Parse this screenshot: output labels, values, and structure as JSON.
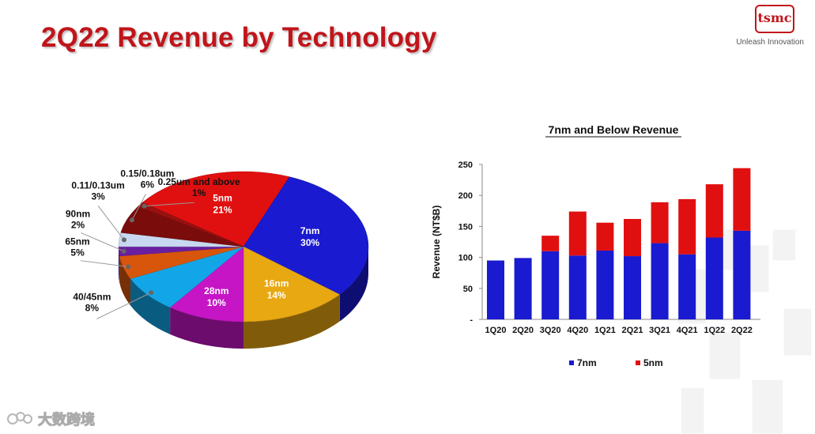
{
  "slide": {
    "title": "2Q22 Revenue by Technology",
    "brand": {
      "logo_text": "tsmc",
      "tagline": "Unleash Innovation",
      "accent": "#c0151b"
    },
    "watermark": "大数跨境"
  },
  "chart_data": [
    {
      "type": "pie",
      "title": "",
      "slices": [
        {
          "label": "5nm",
          "value": 21,
          "pct_label": "21%",
          "color": "#e01010"
        },
        {
          "label": "7nm",
          "value": 30,
          "pct_label": "30%",
          "color": "#1a1ad0"
        },
        {
          "label": "16nm",
          "value": 14,
          "pct_label": "14%",
          "color": "#e8a812"
        },
        {
          "label": "28nm",
          "value": 10,
          "pct_label": "10%",
          "color": "#c515c5"
        },
        {
          "label": "40/45nm",
          "value": 8,
          "pct_label": "8%",
          "color": "#12a6e8"
        },
        {
          "label": "65nm",
          "value": 5,
          "pct_label": "5%",
          "color": "#d8560c"
        },
        {
          "label": "90nm",
          "value": 2,
          "pct_label": "2%",
          "color": "#6a1fa0"
        },
        {
          "label": "0.11/0.13um",
          "value": 3,
          "pct_label": "3%",
          "color": "#c8d8f0"
        },
        {
          "label": "0.15/0.18um",
          "value": 6,
          "pct_label": "6%",
          "color": "#7a0c0c"
        },
        {
          "label": "0.25um and above",
          "value": 1,
          "pct_label": "1%",
          "color": "#9a1010"
        }
      ]
    },
    {
      "type": "bar",
      "stacked": true,
      "title": "7nm and Below Revenue",
      "xlabel": "",
      "ylabel": "Revenue (NT$B)",
      "ylim": [
        0,
        250
      ],
      "yticks": [
        0,
        50,
        100,
        150,
        200,
        250
      ],
      "ytick_labels": [
        "-",
        "50",
        "100",
        "150",
        "200",
        "250"
      ],
      "categories": [
        "1Q20",
        "2Q20",
        "3Q20",
        "4Q20",
        "1Q21",
        "2Q21",
        "3Q21",
        "4Q21",
        "1Q22",
        "2Q22"
      ],
      "series": [
        {
          "name": "7nm",
          "color": "#1a1ad0",
          "values": [
            95,
            99,
            110,
            103,
            111,
            102,
            123,
            105,
            132,
            143
          ]
        },
        {
          "name": "5nm",
          "color": "#e01010",
          "values": [
            0,
            0,
            25,
            71,
            45,
            60,
            66,
            89,
            86,
            101
          ]
        }
      ],
      "legend": "bottom"
    }
  ]
}
